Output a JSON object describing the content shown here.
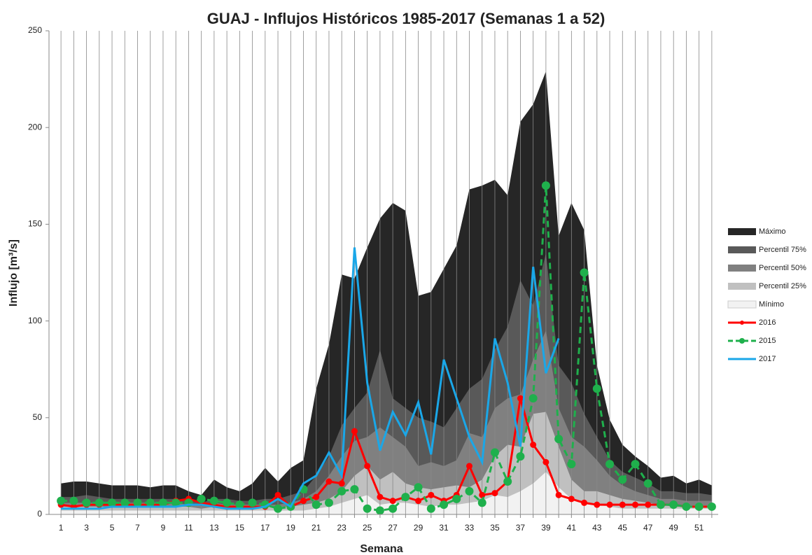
{
  "chart_data": {
    "type": "area-line",
    "title": "GUAJ - Influjos Históricos 1985-2017 (Semanas 1 a 52)",
    "x_label": "Semana",
    "y_label": "Influjo [m³/s]",
    "categories": [
      1,
      null,
      3,
      null,
      5,
      null,
      7,
      null,
      9,
      null,
      11,
      null,
      13,
      null,
      15,
      null,
      17,
      null,
      19,
      null,
      21,
      null,
      23,
      null,
      25,
      null,
      27,
      null,
      29,
      null,
      31,
      null,
      33,
      null,
      35,
      null,
      37,
      null,
      39,
      null,
      41,
      null,
      43,
      null,
      45,
      null,
      47,
      null,
      49,
      null,
      51,
      null
    ],
    "ylim": [
      0,
      250
    ],
    "yticks": [
      0,
      50,
      100,
      150,
      200,
      250
    ],
    "grid": true,
    "legend": "right",
    "areas": [
      {
        "name": "Máximo",
        "color": "#262626",
        "values": [
          16,
          17,
          17,
          16,
          15,
          15,
          15,
          14,
          15,
          15,
          12,
          10,
          18,
          14,
          12,
          16,
          24,
          17,
          24,
          28,
          65,
          88,
          124,
          122,
          138,
          153,
          161,
          157,
          113,
          115,
          127,
          139,
          168,
          170,
          173,
          165,
          203,
          212,
          229,
          144,
          161,
          147,
          77,
          49,
          36,
          30,
          25,
          19,
          20,
          16,
          18,
          15
        ]
      },
      {
        "name": "Percentil 75%",
        "color": "#595959",
        "values": [
          9,
          9,
          10,
          9,
          8,
          8,
          8,
          8,
          8,
          8,
          7,
          6,
          8,
          8,
          7,
          7,
          8,
          8,
          10,
          12,
          20,
          30,
          46,
          55,
          63,
          85,
          60,
          55,
          50,
          48,
          45,
          55,
          65,
          70,
          85,
          97,
          121,
          108,
          135,
          77,
          68,
          52,
          40,
          28,
          22,
          19,
          16,
          12,
          12,
          11,
          11,
          10
        ]
      },
      {
        "name": "Percentil 50%",
        "color": "#808080",
        "values": [
          6,
          6,
          6,
          6,
          6,
          6,
          6,
          6,
          6,
          6,
          5,
          5,
          6,
          5,
          5,
          5,
          5,
          5,
          6,
          8,
          12,
          20,
          30,
          38,
          40,
          45,
          40,
          35,
          25,
          27,
          25,
          28,
          42,
          40,
          55,
          60,
          62,
          80,
          95,
          55,
          40,
          35,
          28,
          20,
          15,
          12,
          10,
          8,
          8,
          7,
          7,
          7
        ]
      },
      {
        "name": "Percentil 25%",
        "color": "#c0c0c0",
        "values": [
          4,
          4,
          4,
          4,
          4,
          4,
          4,
          4,
          4,
          4,
          4,
          3,
          4,
          4,
          3,
          3,
          4,
          4,
          4,
          5,
          6,
          8,
          12,
          20,
          25,
          18,
          22,
          16,
          14,
          13,
          14,
          15,
          14,
          18,
          30,
          36,
          35,
          52,
          53,
          35,
          18,
          12,
          12,
          10,
          8,
          7,
          6,
          5,
          4,
          4,
          4,
          4
        ]
      },
      {
        "name": "Mínimo",
        "color": "#f2f2f2",
        "values": [
          2,
          2,
          2,
          2,
          2,
          2,
          2,
          2,
          2,
          2,
          2,
          2,
          2,
          2,
          2,
          2,
          2,
          2,
          2,
          2,
          3,
          4,
          6,
          8,
          10,
          5,
          6,
          6,
          5,
          4,
          5,
          5,
          6,
          7,
          10,
          9,
          12,
          16,
          22,
          14,
          8,
          6,
          5,
          4,
          3,
          3,
          3,
          3,
          3,
          3,
          3,
          3
        ]
      }
    ],
    "series": [
      {
        "name": "2016",
        "color": "#ff0000",
        "dashed": false,
        "marker": "small",
        "values": [
          5,
          4,
          5,
          5,
          5,
          5,
          5,
          5,
          5,
          7,
          8,
          6,
          5,
          4,
          4,
          4,
          4,
          10,
          4,
          7,
          9,
          17,
          16,
          43,
          25,
          9,
          7,
          9,
          7,
          10,
          7,
          10,
          25,
          10,
          11,
          17,
          60,
          36,
          27,
          10,
          8,
          6,
          5,
          5,
          5,
          5,
          5,
          5,
          5,
          4,
          4,
          4
        ]
      },
      {
        "name": "2015",
        "color": "#1fb04c",
        "dashed": true,
        "marker": "large",
        "values": [
          7,
          7,
          6,
          6,
          6,
          6,
          6,
          6,
          6,
          6,
          6,
          8,
          7,
          6,
          5,
          6,
          5,
          3,
          4,
          13,
          5,
          6,
          12,
          13,
          3,
          2,
          3,
          9,
          14,
          3,
          5,
          8,
          12,
          6,
          32,
          17,
          30,
          60,
          170,
          39,
          26,
          125,
          65,
          26,
          18,
          26,
          16,
          5,
          5,
          4,
          4,
          4
        ]
      },
      {
        "name": "2017",
        "color": "#1aa7e8",
        "dashed": false,
        "marker": "none",
        "values": [
          3,
          3,
          3,
          3,
          4,
          4,
          4,
          4,
          4,
          4,
          5,
          5,
          4,
          3,
          3,
          3,
          4,
          8,
          4,
          16,
          20,
          32,
          20,
          138,
          68,
          33,
          53,
          41,
          58,
          31,
          80,
          60,
          40,
          27,
          91,
          68,
          35,
          128,
          73,
          91,
          null,
          null,
          null,
          null,
          null,
          null,
          null,
          null,
          null,
          null,
          null,
          null
        ]
      }
    ]
  }
}
